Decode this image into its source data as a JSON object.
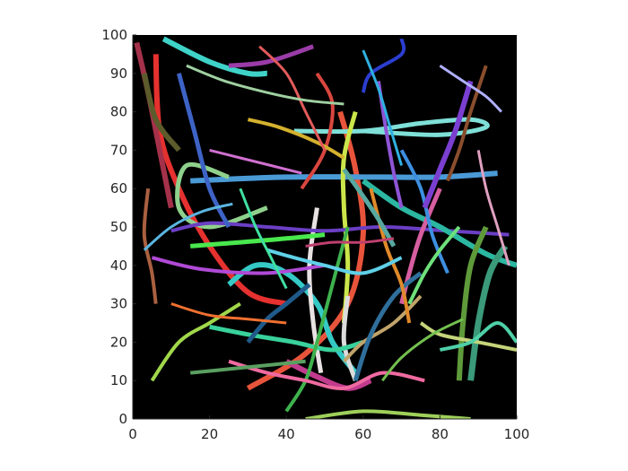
{
  "chart_data": {
    "type": "line",
    "title": "",
    "xlabel": "",
    "ylabel": "",
    "xlim": [
      0,
      100
    ],
    "ylim": [
      0,
      100
    ],
    "x_ticks": [
      "0",
      "20",
      "40",
      "60",
      "80",
      "100"
    ],
    "y_ticks": [
      "0",
      "10",
      "20",
      "30",
      "40",
      "50",
      "60",
      "70",
      "80",
      "90",
      "100"
    ],
    "background": "#000000",
    "grid": false,
    "legend": "none",
    "series": [
      {
        "color": "#e5312f",
        "width": 6,
        "points": [
          [
            6,
            95
          ],
          [
            7,
            75
          ],
          [
            12,
            60
          ],
          [
            20,
            45
          ],
          [
            30,
            33
          ],
          [
            40,
            30
          ]
        ]
      },
      {
        "color": "#e8543b",
        "width": 6,
        "points": [
          [
            54,
            80
          ],
          [
            58,
            65
          ],
          [
            60,
            48
          ],
          [
            56,
            30
          ],
          [
            45,
            17
          ],
          [
            30,
            8
          ]
        ]
      },
      {
        "color": "#4a9ad6",
        "width": 6,
        "points": [
          [
            15,
            62
          ],
          [
            40,
            63
          ],
          [
            65,
            63
          ],
          [
            80,
            63
          ],
          [
            95,
            64
          ]
        ]
      },
      {
        "color": "#7fe0d8",
        "width": 5,
        "points": [
          [
            42,
            75
          ],
          [
            60,
            75
          ],
          [
            75,
            77
          ],
          [
            88,
            78
          ],
          [
            92,
            76
          ],
          [
            80,
            74
          ],
          [
            60,
            75
          ]
        ]
      },
      {
        "color": "#8fd18c",
        "width": 5,
        "points": [
          [
            25,
            63
          ],
          [
            14,
            66
          ],
          [
            12,
            55
          ],
          [
            20,
            50
          ],
          [
            35,
            55
          ]
        ]
      },
      {
        "color": "#35c9c6",
        "width": 6,
        "points": [
          [
            25,
            35
          ],
          [
            32,
            40
          ],
          [
            40,
            38
          ],
          [
            48,
            30
          ],
          [
            52,
            20
          ],
          [
            58,
            12
          ]
        ]
      },
      {
        "color": "#cbe64a",
        "width": 5,
        "points": [
          [
            58,
            80
          ],
          [
            55,
            68
          ],
          [
            55,
            55
          ],
          [
            56,
            40
          ],
          [
            55,
            25
          ]
        ]
      },
      {
        "color": "#dcdcdc",
        "width": 5,
        "points": [
          [
            56,
            32
          ],
          [
            55,
            20
          ],
          [
            58,
            10
          ]
        ]
      },
      {
        "color": "#e9e2e2",
        "width": 5,
        "points": [
          [
            48,
            55
          ],
          [
            46,
            40
          ],
          [
            47,
            25
          ],
          [
            49,
            12
          ]
        ]
      },
      {
        "color": "#c23b8e",
        "width": 6,
        "points": [
          [
            40,
            15
          ],
          [
            48,
            11
          ],
          [
            56,
            8
          ],
          [
            62,
            10
          ]
        ]
      },
      {
        "color": "#39d19c",
        "width": 5,
        "points": [
          [
            20,
            24
          ],
          [
            30,
            22
          ],
          [
            42,
            20
          ],
          [
            52,
            18
          ],
          [
            60,
            20
          ]
        ]
      },
      {
        "color": "#6b3fc4",
        "width": 4,
        "points": [
          [
            10,
            49
          ],
          [
            20,
            51
          ],
          [
            35,
            50
          ],
          [
            50,
            49
          ],
          [
            65,
            50
          ],
          [
            82,
            49
          ],
          [
            98,
            48
          ]
        ]
      },
      {
        "color": "#2bb7a1",
        "width": 6,
        "points": [
          [
            60,
            62
          ],
          [
            70,
            55
          ],
          [
            80,
            50
          ],
          [
            92,
            43
          ],
          [
            100,
            40
          ]
        ]
      },
      {
        "color": "#b04ad6",
        "width": 4,
        "points": [
          [
            5,
            42
          ],
          [
            18,
            39
          ],
          [
            35,
            38
          ],
          [
            50,
            40
          ]
        ]
      },
      {
        "color": "#49e84e",
        "width": 5,
        "points": [
          [
            15,
            45
          ],
          [
            28,
            46
          ],
          [
            40,
            47
          ],
          [
            50,
            48
          ]
        ]
      },
      {
        "color": "#a4314a",
        "width": 6,
        "points": [
          [
            1,
            98
          ],
          [
            4,
            85
          ],
          [
            7,
            70
          ],
          [
            10,
            55
          ]
        ]
      },
      {
        "color": "#3e63c6",
        "width": 5,
        "points": [
          [
            12,
            90
          ],
          [
            16,
            75
          ],
          [
            20,
            60
          ],
          [
            25,
            50
          ]
        ]
      },
      {
        "color": "#5c5b2b",
        "width": 6,
        "points": [
          [
            3,
            90
          ],
          [
            6,
            78
          ],
          [
            12,
            70
          ]
        ]
      },
      {
        "color": "#3fd3c8",
        "width": 6,
        "points": [
          [
            8,
            99
          ],
          [
            20,
            93
          ],
          [
            30,
            90
          ],
          [
            35,
            90
          ]
        ]
      },
      {
        "color": "#9b3ca8",
        "width": 5,
        "points": [
          [
            25,
            92
          ],
          [
            35,
            93
          ],
          [
            47,
            97
          ]
        ]
      },
      {
        "color": "#2b3ed0",
        "width": 4,
        "points": [
          [
            60,
            85
          ],
          [
            62,
            90
          ],
          [
            70,
            95
          ],
          [
            70,
            99
          ]
        ]
      },
      {
        "color": "#5e9a3a",
        "width": 6,
        "points": [
          [
            85,
            10
          ],
          [
            86,
            25
          ],
          [
            88,
            40
          ],
          [
            92,
            50
          ]
        ]
      },
      {
        "color": "#3a9a7a",
        "width": 7,
        "points": [
          [
            88,
            10
          ],
          [
            90,
            25
          ],
          [
            93,
            38
          ],
          [
            97,
            45
          ]
        ]
      },
      {
        "color": "#d65ea0",
        "width": 5,
        "points": [
          [
            80,
            60
          ],
          [
            75,
            48
          ],
          [
            72,
            38
          ],
          [
            70,
            30
          ]
        ]
      },
      {
        "color": "#c0a46a",
        "width": 4,
        "points": [
          [
            75,
            32
          ],
          [
            68,
            25
          ],
          [
            60,
            20
          ],
          [
            55,
            15
          ]
        ]
      },
      {
        "color": "#3fb24d",
        "width": 4,
        "points": [
          [
            40,
            2
          ],
          [
            45,
            10
          ],
          [
            48,
            20
          ],
          [
            52,
            35
          ],
          [
            56,
            50
          ]
        ]
      },
      {
        "color": "#2f6f9c",
        "width": 5,
        "points": [
          [
            58,
            10
          ],
          [
            62,
            22
          ],
          [
            68,
            32
          ],
          [
            75,
            38
          ]
        ]
      },
      {
        "color": "#e08a2a",
        "width": 4,
        "points": [
          [
            62,
            60
          ],
          [
            66,
            45
          ],
          [
            70,
            35
          ],
          [
            72,
            25
          ]
        ]
      },
      {
        "color": "#9ed05a",
        "width": 4,
        "points": [
          [
            45,
            0
          ],
          [
            60,
            2
          ],
          [
            75,
            1
          ],
          [
            88,
            0
          ]
        ]
      },
      {
        "color": "#5fd0e8",
        "width": 4,
        "points": [
          [
            35,
            44
          ],
          [
            42,
            42
          ],
          [
            50,
            40
          ],
          [
            60,
            38
          ],
          [
            70,
            42
          ]
        ]
      },
      {
        "color": "#a0d84a",
        "width": 4,
        "points": [
          [
            5,
            10
          ],
          [
            12,
            20
          ],
          [
            20,
            25
          ],
          [
            28,
            30
          ]
        ]
      },
      {
        "color": "#3d8fe0",
        "width": 4,
        "points": [
          [
            70,
            70
          ],
          [
            75,
            60
          ],
          [
            78,
            48
          ],
          [
            82,
            38
          ]
        ]
      },
      {
        "color": "#7a3fd0",
        "width": 6,
        "points": [
          [
            88,
            88
          ],
          [
            84,
            75
          ],
          [
            80,
            65
          ],
          [
            76,
            55
          ]
        ]
      },
      {
        "color": "#8a4e2d",
        "width": 4,
        "points": [
          [
            92,
            92
          ],
          [
            88,
            80
          ],
          [
            85,
            70
          ],
          [
            82,
            62
          ]
        ]
      },
      {
        "color": "#56a8a0",
        "width": 5,
        "points": [
          [
            55,
            65
          ],
          [
            60,
            58
          ],
          [
            64,
            52
          ],
          [
            68,
            45
          ]
        ]
      },
      {
        "color": "#ef6aa0",
        "width": 4,
        "points": [
          [
            25,
            15
          ],
          [
            35,
            12
          ],
          [
            45,
            10
          ],
          [
            55,
            8
          ],
          [
            65,
            12
          ],
          [
            76,
            10
          ]
        ]
      },
      {
        "color": "#c4d47a",
        "width": 4,
        "points": [
          [
            75,
            25
          ],
          [
            80,
            22
          ],
          [
            90,
            20
          ],
          [
            100,
            18
          ]
        ]
      },
      {
        "color": "#4ed0a8",
        "width": 4,
        "points": [
          [
            80,
            18
          ],
          [
            88,
            20
          ],
          [
            95,
            25
          ],
          [
            100,
            20
          ]
        ]
      },
      {
        "color": "#d9463f",
        "width": 4,
        "points": [
          [
            44,
            60
          ],
          [
            50,
            70
          ],
          [
            52,
            82
          ],
          [
            48,
            90
          ]
        ]
      },
      {
        "color": "#d4b12e",
        "width": 4,
        "points": [
          [
            30,
            78
          ],
          [
            38,
            76
          ],
          [
            48,
            72
          ],
          [
            55,
            68
          ]
        ]
      },
      {
        "color": "#8e55d6",
        "width": 4,
        "points": [
          [
            64,
            88
          ],
          [
            66,
            75
          ],
          [
            68,
            64
          ],
          [
            70,
            55
          ]
        ]
      },
      {
        "color": "#6ee07a",
        "width": 4,
        "points": [
          [
            72,
            30
          ],
          [
            76,
            38
          ],
          [
            80,
            44
          ],
          [
            85,
            50
          ]
        ]
      },
      {
        "color": "#1f5a8a",
        "width": 5,
        "points": [
          [
            30,
            20
          ],
          [
            35,
            26
          ],
          [
            40,
            30
          ],
          [
            46,
            35
          ]
        ]
      },
      {
        "color": "#aa6040",
        "width": 4,
        "points": [
          [
            4,
            60
          ],
          [
            3,
            48
          ],
          [
            5,
            38
          ],
          [
            6,
            30
          ]
        ]
      },
      {
        "color": "#5ab5e0",
        "width": 3,
        "points": [
          [
            3,
            44
          ],
          [
            10,
            50
          ],
          [
            18,
            54
          ],
          [
            26,
            56
          ]
        ]
      },
      {
        "color": "#e25a5a",
        "width": 3,
        "points": [
          [
            33,
            97
          ],
          [
            40,
            90
          ],
          [
            45,
            80
          ],
          [
            50,
            70
          ]
        ]
      },
      {
        "color": "#9fd0a0",
        "width": 3,
        "points": [
          [
            14,
            92
          ],
          [
            24,
            88
          ],
          [
            35,
            85
          ],
          [
            45,
            83
          ],
          [
            55,
            82
          ]
        ]
      },
      {
        "color": "#2fb0e0",
        "width": 3,
        "points": [
          [
            60,
            96
          ],
          [
            64,
            86
          ],
          [
            67,
            76
          ],
          [
            70,
            66
          ]
        ]
      },
      {
        "color": "#d070d0",
        "width": 3,
        "points": [
          [
            20,
            70
          ],
          [
            28,
            68
          ],
          [
            36,
            66
          ],
          [
            44,
            64
          ]
        ]
      },
      {
        "color": "#73c04f",
        "width": 3,
        "points": [
          [
            65,
            10
          ],
          [
            70,
            16
          ],
          [
            78,
            22
          ],
          [
            86,
            26
          ]
        ]
      },
      {
        "color": "#f07030",
        "width": 3,
        "points": [
          [
            10,
            30
          ],
          [
            20,
            27
          ],
          [
            30,
            26
          ],
          [
            40,
            25
          ]
        ]
      },
      {
        "color": "#b0b0ff",
        "width": 3,
        "points": [
          [
            80,
            92
          ],
          [
            86,
            88
          ],
          [
            92,
            84
          ],
          [
            96,
            80
          ]
        ]
      },
      {
        "color": "#5aa060",
        "width": 4,
        "points": [
          [
            15,
            12
          ],
          [
            25,
            13
          ],
          [
            35,
            14
          ],
          [
            45,
            15
          ]
        ]
      },
      {
        "color": "#e0a0c0",
        "width": 3,
        "points": [
          [
            90,
            70
          ],
          [
            92,
            60
          ],
          [
            95,
            50
          ],
          [
            98,
            40
          ]
        ]
      },
      {
        "color": "#40e0a0",
        "width": 3,
        "points": [
          [
            28,
            60
          ],
          [
            32,
            50
          ],
          [
            36,
            42
          ],
          [
            40,
            34
          ]
        ]
      },
      {
        "color": "#c04070",
        "width": 3,
        "points": [
          [
            45,
            45
          ],
          [
            52,
            46
          ],
          [
            60,
            46
          ],
          [
            68,
            47
          ]
        ]
      }
    ]
  }
}
